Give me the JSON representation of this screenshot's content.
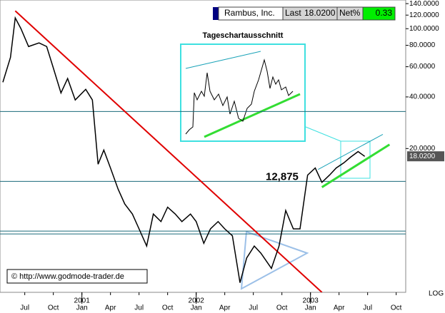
{
  "chart_data": {
    "type": "line",
    "title": "Rambus, Inc.",
    "header": {
      "last_label": "Last",
      "last": "18.0200",
      "net_label": "Net%",
      "net": "0.33"
    },
    "color": "#000000",
    "x": [
      -2.3,
      -1.5,
      -1.0,
      -0.4,
      0.4,
      1.5,
      2.3,
      3.0,
      3.8,
      4.5,
      5.3,
      6.4,
      7.1,
      7.7,
      8.3,
      9.0,
      9.8,
      10.5,
      11.3,
      12.0,
      12.8,
      13.5,
      14.3,
      15.0,
      15.8,
      16.5,
      17.4,
      18.0,
      18.8,
      19.5,
      20.3,
      21.0,
      21.8,
      22.6,
      23.3,
      24.1,
      24.8,
      25.9,
      26.7,
      27.4,
      28.2,
      28.9,
      29.7,
      30.5,
      31.2,
      32.0,
      32.7,
      33.5,
      34.2,
      35.0,
      35.7
    ],
    "values": [
      48.7,
      68,
      115.6,
      100,
      78.7,
      82.6,
      78.7,
      59,
      42.2,
      51.2,
      38.4,
      44.3,
      38.4,
      16.2,
      19.6,
      15.4,
      11.6,
      9.5,
      8.3,
      6.8,
      5.4,
      8.3,
      7.5,
      9.1,
      8.3,
      7.5,
      8.3,
      7.5,
      5.6,
      6.8,
      7.5,
      6.8,
      6.2,
      3.3,
      4.6,
      5.4,
      4.9,
      4.0,
      5.4,
      8.7,
      6.8,
      6.8,
      14.0,
      15.4,
      12.7,
      14.0,
      15.4,
      16.5,
      17.8,
      19.2,
      18.0
    ],
    "log_scale": true,
    "ylim": [
      2.9,
      147
    ],
    "xlim": [
      -2.6,
      40
    ],
    "yticks": [
      {
        "value": 140,
        "label": "140.0000"
      },
      {
        "value": 120,
        "label": "120.0000"
      },
      {
        "value": 100,
        "label": "100.0000"
      },
      {
        "value": 80,
        "label": "80.0000"
      },
      {
        "value": 60,
        "label": "60.0000"
      },
      {
        "value": 40,
        "label": "40.0000"
      },
      {
        "value": 20,
        "label": "20.0000"
      }
    ],
    "xticks": [
      {
        "value": 0,
        "label": "Jul"
      },
      {
        "value": 3,
        "label": "Oct"
      },
      {
        "value": 6,
        "label": "Jan"
      },
      {
        "value": 9,
        "label": "Apr"
      },
      {
        "value": 12,
        "label": "Jul"
      },
      {
        "value": 15,
        "label": "Oct"
      },
      {
        "value": 18,
        "label": "Jan"
      },
      {
        "value": 21,
        "label": "Apr"
      },
      {
        "value": 24,
        "label": "Jul"
      },
      {
        "value": 27,
        "label": "Oct"
      },
      {
        "value": 30,
        "label": "Jan"
      },
      {
        "value": 33,
        "label": "Apr"
      },
      {
        "value": 36,
        "label": "Jul"
      },
      {
        "value": 39,
        "label": "Oct"
      }
    ],
    "years": [
      {
        "value": 6,
        "label": "2001"
      },
      {
        "value": 18,
        "label": "2002"
      },
      {
        "value": 30,
        "label": "2003"
      }
    ],
    "levels": [
      {
        "value": 12.875,
        "label": "12,875"
      }
    ],
    "hlines": [
      32.9,
      6.6,
      6.35
    ],
    "trendlines": [
      {
        "color": "#e00000",
        "x": [
          -1.0,
          31.2
        ],
        "y": [
          127,
          2.9
        ]
      },
      {
        "color": "#33dd33",
        "x": [
          31.2,
          38.3
        ],
        "y": [
          11.9,
          21.1
        ]
      },
      {
        "color": "#1ba3b8",
        "x": [
          30.8,
          37.6
        ],
        "y": [
          15.1,
          24.2
        ]
      }
    ],
    "inset_title": "Tageschartausschnitt",
    "copyright": "© http://www.godmode-trader.de",
    "scale_label": "LOG"
  }
}
